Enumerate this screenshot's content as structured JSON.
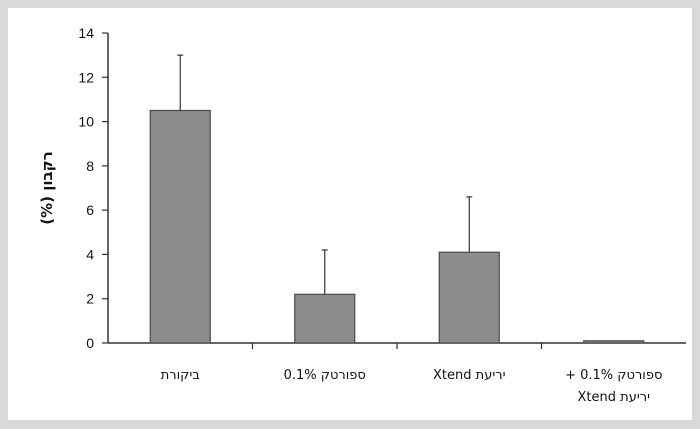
{
  "chart_data": {
    "type": "bar",
    "categories": [
      [
        "ביקורת"
      ],
      [
        "ספורטק 0.1%"
      ],
      [
        "יריעת Xtend"
      ],
      [
        "ספורטק 0.1% +",
        "יריעת Xtend"
      ]
    ],
    "values": [
      10.5,
      2.2,
      4.1,
      0.1
    ],
    "error_upper": [
      13.0,
      4.2,
      6.6,
      0.1
    ],
    "ylabel": "רקבון (%)",
    "ylim": [
      0,
      14
    ],
    "yticks": [
      0,
      2,
      4,
      6,
      8,
      10,
      12,
      14
    ],
    "grid": false,
    "colors": {
      "bar_fill": "#8c8c8c",
      "bar_stroke": "#4a4a4a",
      "axis": "#333333",
      "background": "#ffffff",
      "frame": "#d9d9d9"
    }
  }
}
